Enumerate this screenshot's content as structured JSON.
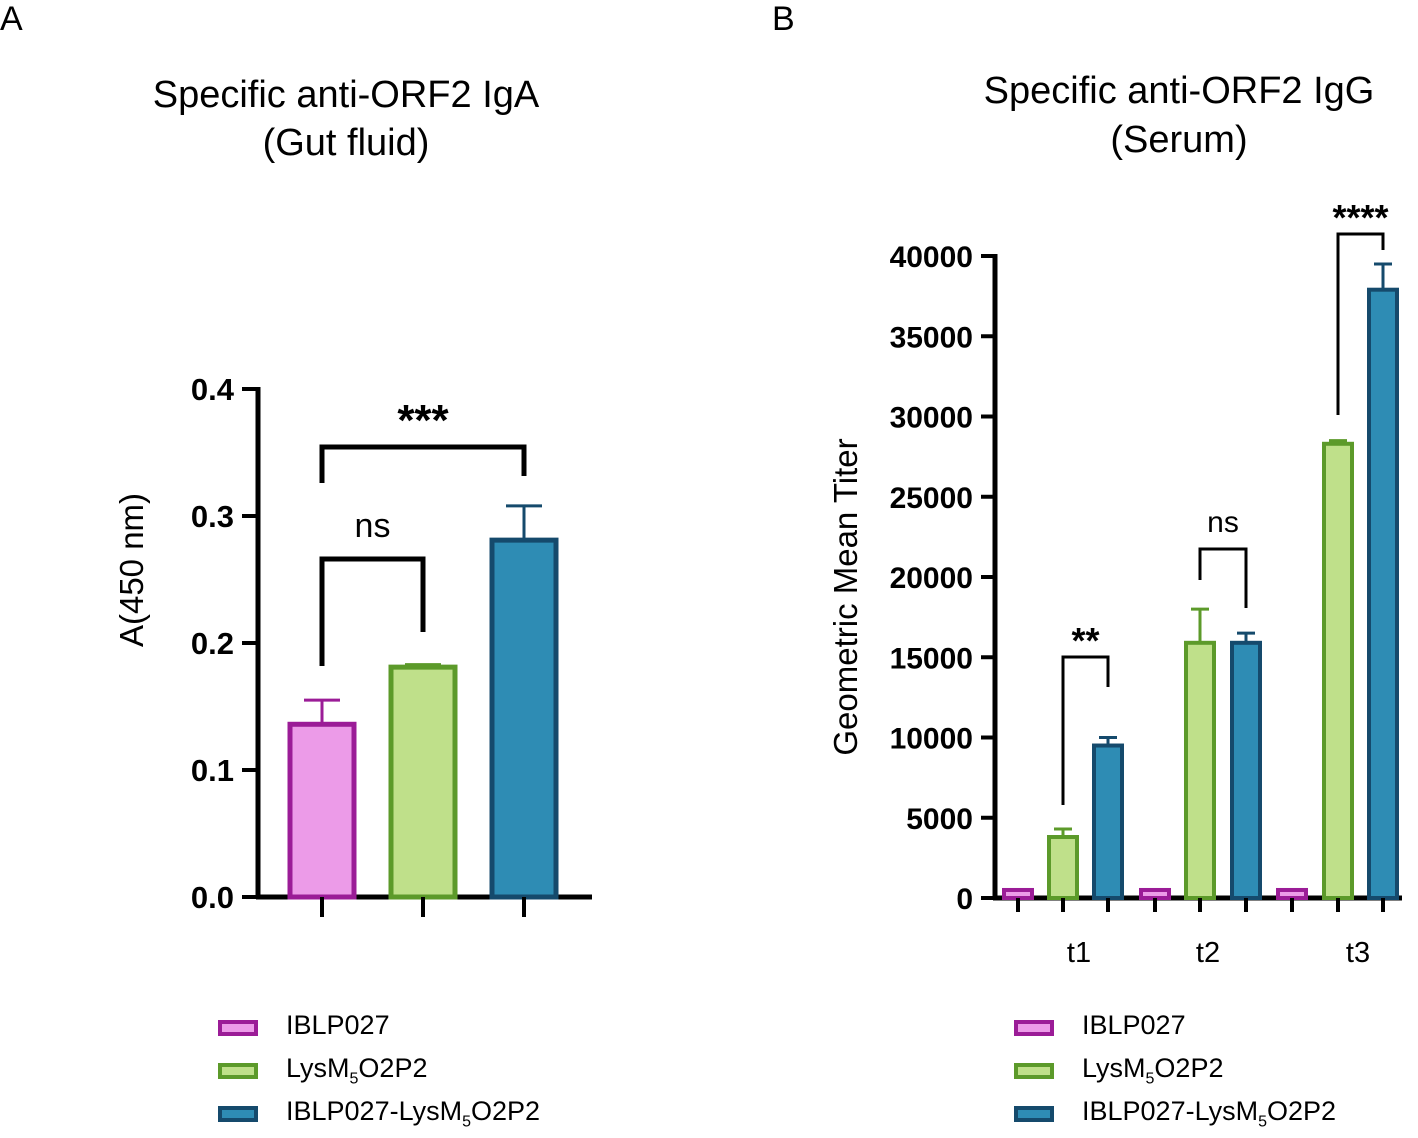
{
  "colors": {
    "IBLP027": {
      "fill": "#ec9be8",
      "stroke": "#9b1c97"
    },
    "LysM5O2P2": {
      "fill": "#bfe08a",
      "stroke": "#5c9a2a"
    },
    "IBLP027-LysM5O2P2": {
      "fill": "#2e8cb4",
      "stroke": "#154a6c"
    }
  },
  "legend": [
    {
      "key": "IBLP027",
      "text": "IBLP027",
      "sub": "",
      "after": ""
    },
    {
      "key": "LysM5O2P2",
      "text": "LysM",
      "sub": "5",
      "after": "O2P2"
    },
    {
      "key": "IBLP027-LysM5O2P2",
      "text": "IBLP027-LysM",
      "sub": "5",
      "after": "O2P2"
    }
  ],
  "chart_data": [
    {
      "panel": "A",
      "type": "bar",
      "title": "Specific anti-ORF2 IgA",
      "subtitle": "(Gut fluid)",
      "ylabel": "A(450 nm)",
      "xlabel": "",
      "ylim": [
        0,
        0.4
      ],
      "yticks": [
        "0.0",
        "0.1",
        "0.2",
        "0.3",
        "0.4"
      ],
      "categories": [
        "IBLP027",
        "LysM5O2P2",
        "IBLP027-LysM5O2P2"
      ],
      "values": [
        0.136,
        0.181,
        0.281
      ],
      "errors": [
        0.019,
        0.002,
        0.027
      ],
      "significance": [
        {
          "from": 0,
          "to": 1,
          "label": "ns"
        },
        {
          "from": 0,
          "to": 2,
          "label": "***"
        }
      ]
    },
    {
      "panel": "B",
      "type": "bar",
      "title": "Specific anti-ORF2 IgG",
      "subtitle": "(Serum)",
      "ylabel": "Geometric Mean Titer",
      "xlabel": "",
      "ylim": [
        0,
        40000
      ],
      "yticks": [
        "0",
        "5000",
        "10000",
        "15000",
        "20000",
        "25000",
        "30000",
        "35000",
        "40000"
      ],
      "categories": [
        "t1",
        "t2",
        "t3"
      ],
      "series": [
        {
          "name": "IBLP027",
          "values": [
            500,
            500,
            500
          ],
          "errors": [
            0,
            0,
            0
          ]
        },
        {
          "name": "LysM5O2P2",
          "values": [
            3800,
            15900,
            28300
          ],
          "errors": [
            500,
            2100,
            200
          ]
        },
        {
          "name": "IBLP027-LysM5O2P2",
          "values": [
            9500,
            15900,
            37900
          ],
          "errors": [
            500,
            600,
            1600
          ]
        }
      ],
      "significance": [
        {
          "category": 0,
          "label": "**"
        },
        {
          "category": 1,
          "label": "ns"
        },
        {
          "category": 2,
          "label": "****"
        }
      ]
    }
  ]
}
